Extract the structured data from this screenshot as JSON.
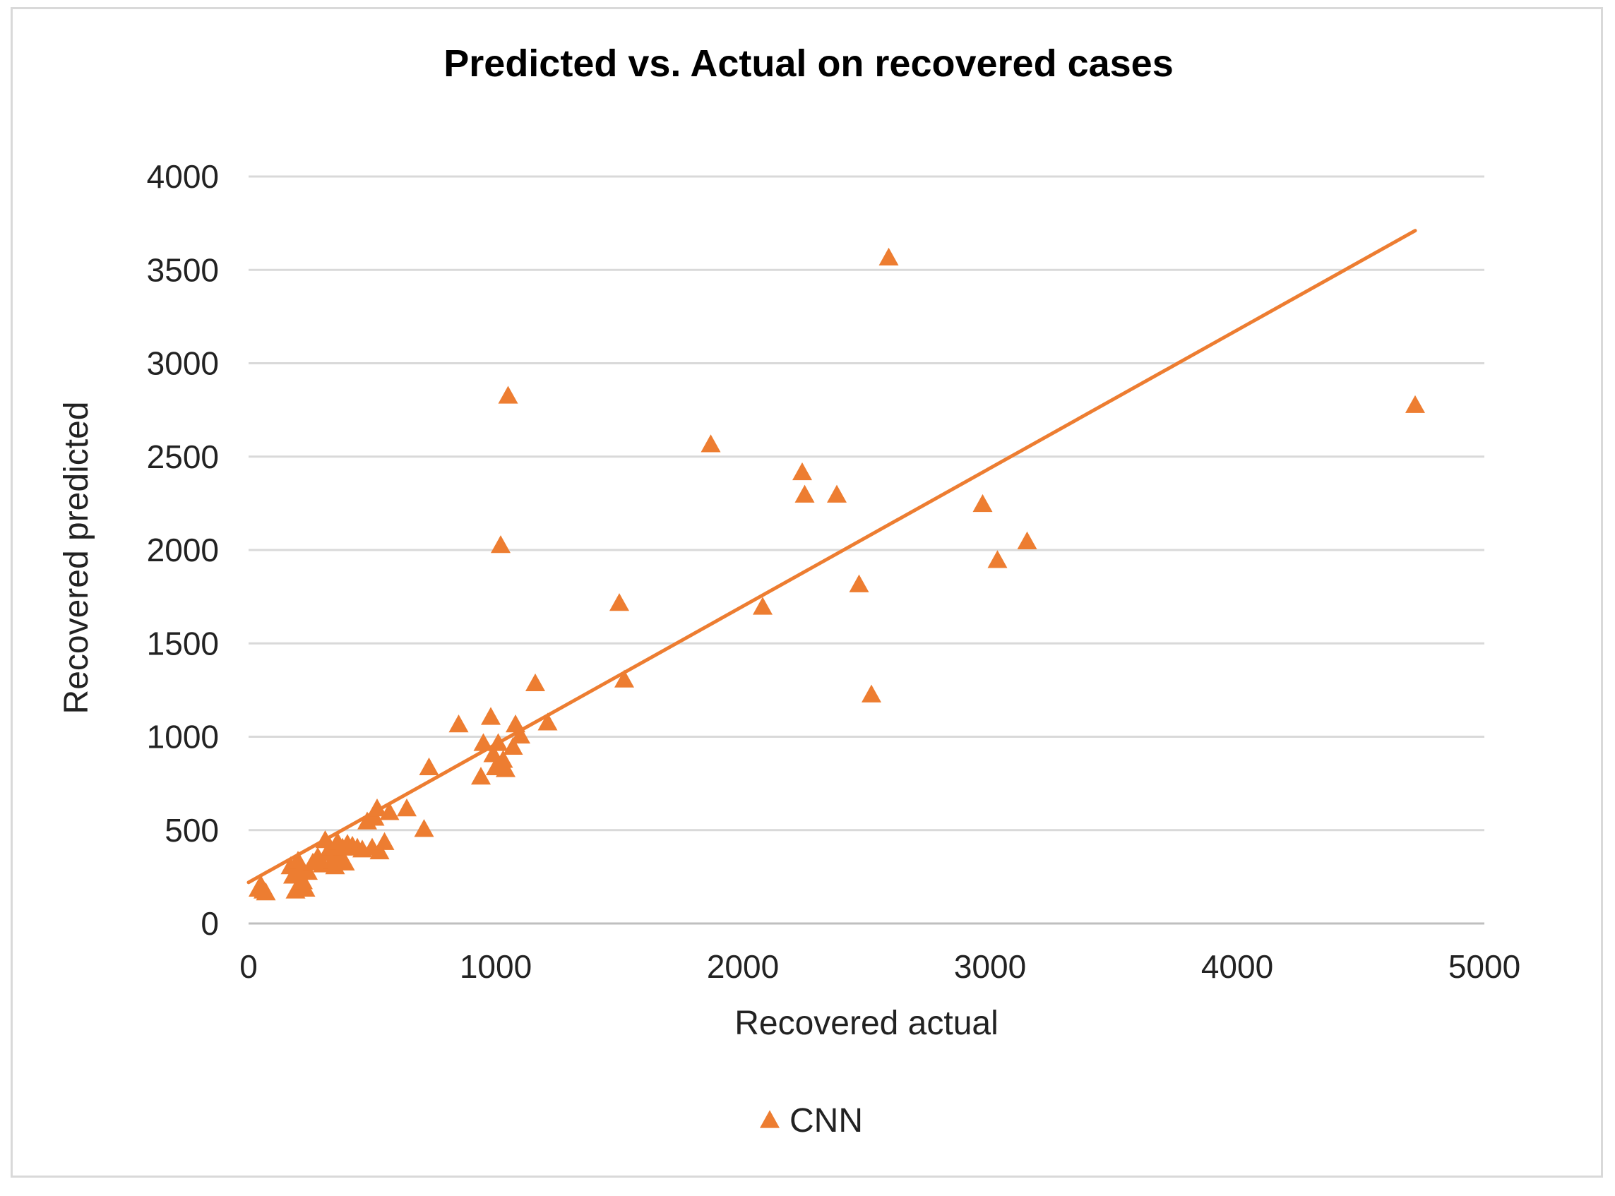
{
  "chart_data": {
    "type": "scatter",
    "title": "Predicted vs. Actual on recovered cases",
    "xlabel": "Recovered actual",
    "ylabel": "Recovered predicted",
    "xlim": [
      0,
      5000
    ],
    "ylim": [
      0,
      4000
    ],
    "xticks": [
      "0",
      "1000",
      "2000",
      "3000",
      "4000",
      "5000"
    ],
    "yticks": [
      "0",
      "500",
      "1000",
      "1500",
      "2000",
      "2500",
      "3000",
      "3500",
      "4000"
    ],
    "grid": "horizontal",
    "legend_position": "bottom",
    "marker_color": "#ED7D31",
    "series": [
      {
        "name": "CNN",
        "marker": "triangle",
        "points": [
          [
            40,
            180
          ],
          [
            50,
            200
          ],
          [
            60,
            170
          ],
          [
            70,
            160
          ],
          [
            170,
            300
          ],
          [
            180,
            250
          ],
          [
            190,
            170
          ],
          [
            200,
            330
          ],
          [
            210,
            280
          ],
          [
            220,
            220
          ],
          [
            230,
            180
          ],
          [
            240,
            270
          ],
          [
            260,
            320
          ],
          [
            280,
            350
          ],
          [
            300,
            310
          ],
          [
            310,
            440
          ],
          [
            320,
            370
          ],
          [
            330,
            400
          ],
          [
            340,
            330
          ],
          [
            350,
            300
          ],
          [
            360,
            430
          ],
          [
            370,
            360
          ],
          [
            380,
            400
          ],
          [
            390,
            320
          ],
          [
            400,
            420
          ],
          [
            420,
            410
          ],
          [
            440,
            400
          ],
          [
            460,
            390
          ],
          [
            480,
            540
          ],
          [
            500,
            400
          ],
          [
            510,
            560
          ],
          [
            520,
            610
          ],
          [
            530,
            380
          ],
          [
            550,
            430
          ],
          [
            570,
            590
          ],
          [
            640,
            610
          ],
          [
            710,
            500
          ],
          [
            730,
            830
          ],
          [
            850,
            1060
          ],
          [
            940,
            780
          ],
          [
            950,
            960
          ],
          [
            980,
            1100
          ],
          [
            990,
            900
          ],
          [
            1000,
            830
          ],
          [
            1010,
            960
          ],
          [
            1020,
            2020
          ],
          [
            1030,
            870
          ],
          [
            1040,
            820
          ],
          [
            1050,
            2820
          ],
          [
            1070,
            940
          ],
          [
            1080,
            1060
          ],
          [
            1100,
            1000
          ],
          [
            1160,
            1280
          ],
          [
            1210,
            1070
          ],
          [
            1500,
            1710
          ],
          [
            1520,
            1300
          ],
          [
            1870,
            2560
          ],
          [
            2080,
            1690
          ],
          [
            2240,
            2410
          ],
          [
            2250,
            2290
          ],
          [
            2380,
            2290
          ],
          [
            2470,
            1810
          ],
          [
            2520,
            1220
          ],
          [
            2590,
            3560
          ],
          [
            2970,
            2240
          ],
          [
            3030,
            1940
          ],
          [
            3150,
            2040
          ],
          [
            4720,
            2770
          ]
        ]
      }
    ],
    "trendline": {
      "x": [
        0,
        4720
      ],
      "y": [
        220,
        3710
      ]
    }
  }
}
